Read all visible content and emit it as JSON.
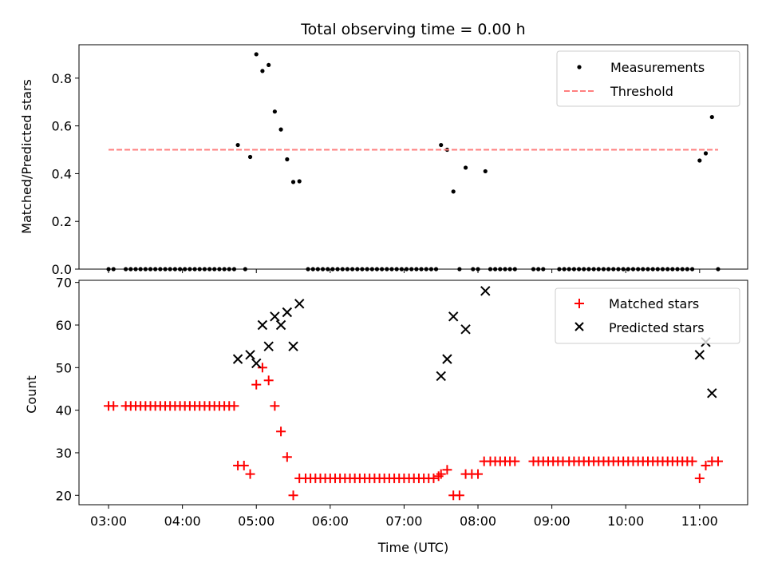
{
  "chart_data": [
    {
      "type": "scatter",
      "title": "Total observing time = 0.00 h",
      "ylabel": "Matched/Predicted stars",
      "xlabel": "",
      "x_unit": "hours (UTC)",
      "xlim": [
        2.6,
        11.65
      ],
      "ylim": [
        0,
        0.94
      ],
      "yticks": [
        0.0,
        0.2,
        0.4,
        0.6,
        0.8
      ],
      "ytick_labels": [
        "0.0",
        "0.2",
        "0.4",
        "0.6",
        "0.8"
      ],
      "xticks": [
        3,
        4,
        5,
        6,
        7,
        8,
        9,
        10,
        11
      ],
      "legend_position": "upper right",
      "series": [
        {
          "name": "Measurements",
          "kind": "scatter",
          "color": "#000000",
          "marker": "dot",
          "points": [
            [
              3.0,
              0
            ],
            [
              3.067,
              0
            ],
            [
              3.233,
              0
            ],
            [
              3.3,
              0
            ],
            [
              3.367,
              0
            ],
            [
              3.433,
              0
            ],
            [
              3.5,
              0
            ],
            [
              3.567,
              0
            ],
            [
              3.633,
              0
            ],
            [
              3.7,
              0
            ],
            [
              3.767,
              0
            ],
            [
              3.833,
              0
            ],
            [
              3.9,
              0
            ],
            [
              3.967,
              0
            ],
            [
              4.033,
              0
            ],
            [
              4.1,
              0
            ],
            [
              4.167,
              0
            ],
            [
              4.233,
              0
            ],
            [
              4.3,
              0
            ],
            [
              4.367,
              0
            ],
            [
              4.433,
              0
            ],
            [
              4.5,
              0
            ],
            [
              4.567,
              0
            ],
            [
              4.633,
              0
            ],
            [
              4.7,
              0
            ],
            [
              4.75,
              0.52
            ],
            [
              4.85,
              0
            ],
            [
              4.917,
              0.47
            ],
            [
              5.0,
              0.9
            ],
            [
              5.083,
              0.83
            ],
            [
              5.167,
              0.855
            ],
            [
              5.25,
              0.66
            ],
            [
              5.333,
              0.585
            ],
            [
              5.417,
              0.46
            ],
            [
              5.5,
              0.365
            ],
            [
              5.583,
              0.368
            ],
            [
              5.7,
              0
            ],
            [
              5.767,
              0
            ],
            [
              5.833,
              0
            ],
            [
              5.9,
              0
            ],
            [
              5.967,
              0
            ],
            [
              6.033,
              0
            ],
            [
              6.1,
              0
            ],
            [
              6.167,
              0
            ],
            [
              6.233,
              0
            ],
            [
              6.3,
              0
            ],
            [
              6.367,
              0
            ],
            [
              6.433,
              0
            ],
            [
              6.5,
              0
            ],
            [
              6.567,
              0
            ],
            [
              6.633,
              0
            ],
            [
              6.7,
              0
            ],
            [
              6.767,
              0
            ],
            [
              6.833,
              0
            ],
            [
              6.9,
              0
            ],
            [
              6.967,
              0
            ],
            [
              7.033,
              0
            ],
            [
              7.1,
              0
            ],
            [
              7.167,
              0
            ],
            [
              7.233,
              0
            ],
            [
              7.3,
              0
            ],
            [
              7.367,
              0
            ],
            [
              7.433,
              0
            ],
            [
              7.5,
              0.52
            ],
            [
              7.583,
              0.5
            ],
            [
              7.667,
              0.325
            ],
            [
              7.75,
              0
            ],
            [
              7.833,
              0.425
            ],
            [
              7.933,
              0
            ],
            [
              8.0,
              0
            ],
            [
              8.1,
              0.41
            ],
            [
              8.167,
              0
            ],
            [
              8.233,
              0
            ],
            [
              8.3,
              0
            ],
            [
              8.367,
              0
            ],
            [
              8.433,
              0
            ],
            [
              8.5,
              0
            ],
            [
              8.75,
              0
            ],
            [
              8.817,
              0
            ],
            [
              8.883,
              0
            ],
            [
              9.1,
              0
            ],
            [
              9.167,
              0
            ],
            [
              9.233,
              0
            ],
            [
              9.3,
              0
            ],
            [
              9.367,
              0
            ],
            [
              9.433,
              0
            ],
            [
              9.5,
              0
            ],
            [
              9.567,
              0
            ],
            [
              9.633,
              0
            ],
            [
              9.7,
              0
            ],
            [
              9.767,
              0
            ],
            [
              9.833,
              0
            ],
            [
              9.9,
              0
            ],
            [
              9.967,
              0
            ],
            [
              10.033,
              0
            ],
            [
              10.1,
              0
            ],
            [
              10.167,
              0
            ],
            [
              10.233,
              0
            ],
            [
              10.3,
              0
            ],
            [
              10.367,
              0
            ],
            [
              10.433,
              0
            ],
            [
              10.5,
              0
            ],
            [
              10.567,
              0
            ],
            [
              10.633,
              0
            ],
            [
              10.7,
              0
            ],
            [
              10.767,
              0
            ],
            [
              10.833,
              0
            ],
            [
              10.9,
              0
            ],
            [
              11.0,
              0.455
            ],
            [
              11.083,
              0.485
            ],
            [
              11.167,
              0.637
            ],
            [
              11.25,
              0
            ]
          ]
        },
        {
          "name": "Threshold",
          "kind": "line",
          "style": "dashed",
          "color": "#ff7f7f",
          "points": [
            [
              3.0,
              0.5
            ],
            [
              11.25,
              0.5
            ]
          ]
        }
      ]
    },
    {
      "type": "scatter",
      "title": "",
      "ylabel": "Count",
      "xlabel": "Time (UTC)",
      "x_unit": "hours (UTC)",
      "xlim": [
        2.6,
        11.65
      ],
      "ylim": [
        17.8,
        70.5
      ],
      "yticks": [
        20,
        30,
        40,
        50,
        60,
        70
      ],
      "xticks": [
        3,
        4,
        5,
        6,
        7,
        8,
        9,
        10,
        11
      ],
      "xtick_labels": [
        "03:00",
        "04:00",
        "05:00",
        "06:00",
        "07:00",
        "08:00",
        "09:00",
        "10:00",
        "11:00"
      ],
      "legend_position": "upper right",
      "series": [
        {
          "name": "Matched stars",
          "kind": "scatter",
          "color": "#ff0000",
          "marker": "plus",
          "points": [
            [
              3.0,
              41
            ],
            [
              3.067,
              41
            ],
            [
              3.233,
              41
            ],
            [
              3.3,
              41
            ],
            [
              3.367,
              41
            ],
            [
              3.433,
              41
            ],
            [
              3.5,
              41
            ],
            [
              3.567,
              41
            ],
            [
              3.633,
              41
            ],
            [
              3.7,
              41
            ],
            [
              3.767,
              41
            ],
            [
              3.833,
              41
            ],
            [
              3.9,
              41
            ],
            [
              3.967,
              41
            ],
            [
              4.033,
              41
            ],
            [
              4.1,
              41
            ],
            [
              4.167,
              41
            ],
            [
              4.233,
              41
            ],
            [
              4.3,
              41
            ],
            [
              4.367,
              41
            ],
            [
              4.433,
              41
            ],
            [
              4.5,
              41
            ],
            [
              4.567,
              41
            ],
            [
              4.633,
              41
            ],
            [
              4.7,
              41
            ],
            [
              4.75,
              27
            ],
            [
              4.833,
              27
            ],
            [
              4.917,
              25
            ],
            [
              5.0,
              46
            ],
            [
              5.083,
              50
            ],
            [
              5.167,
              47
            ],
            [
              5.25,
              41
            ],
            [
              5.333,
              35
            ],
            [
              5.417,
              29
            ],
            [
              5.5,
              20
            ],
            [
              5.583,
              24
            ],
            [
              5.667,
              24
            ],
            [
              5.733,
              24
            ],
            [
              5.8,
              24
            ],
            [
              5.867,
              24
            ],
            [
              5.933,
              24
            ],
            [
              6.0,
              24
            ],
            [
              6.067,
              24
            ],
            [
              6.133,
              24
            ],
            [
              6.2,
              24
            ],
            [
              6.267,
              24
            ],
            [
              6.333,
              24
            ],
            [
              6.4,
              24
            ],
            [
              6.467,
              24
            ],
            [
              6.533,
              24
            ],
            [
              6.6,
              24
            ],
            [
              6.667,
              24
            ],
            [
              6.733,
              24
            ],
            [
              6.8,
              24
            ],
            [
              6.867,
              24
            ],
            [
              6.933,
              24
            ],
            [
              7.0,
              24
            ],
            [
              7.067,
              24
            ],
            [
              7.133,
              24
            ],
            [
              7.2,
              24
            ],
            [
              7.267,
              24
            ],
            [
              7.333,
              24
            ],
            [
              7.4,
              24
            ],
            [
              7.467,
              24.5
            ],
            [
              7.5,
              25
            ],
            [
              7.583,
              26
            ],
            [
              7.667,
              20
            ],
            [
              7.75,
              20
            ],
            [
              7.833,
              25
            ],
            [
              7.917,
              25
            ],
            [
              8.0,
              25
            ],
            [
              8.083,
              28
            ],
            [
              8.167,
              28
            ],
            [
              8.233,
              28
            ],
            [
              8.3,
              28
            ],
            [
              8.367,
              28
            ],
            [
              8.433,
              28
            ],
            [
              8.5,
              28
            ],
            [
              8.75,
              28
            ],
            [
              8.817,
              28
            ],
            [
              8.883,
              28
            ],
            [
              8.95,
              28
            ],
            [
              9.017,
              28
            ],
            [
              9.083,
              28
            ],
            [
              9.15,
              28
            ],
            [
              9.233,
              28
            ],
            [
              9.3,
              28
            ],
            [
              9.367,
              28
            ],
            [
              9.433,
              28
            ],
            [
              9.5,
              28
            ],
            [
              9.567,
              28
            ],
            [
              9.633,
              28
            ],
            [
              9.7,
              28
            ],
            [
              9.767,
              28
            ],
            [
              9.833,
              28
            ],
            [
              9.9,
              28
            ],
            [
              9.967,
              28
            ],
            [
              10.033,
              28
            ],
            [
              10.1,
              28
            ],
            [
              10.167,
              28
            ],
            [
              10.233,
              28
            ],
            [
              10.3,
              28
            ],
            [
              10.367,
              28
            ],
            [
              10.433,
              28
            ],
            [
              10.5,
              28
            ],
            [
              10.567,
              28
            ],
            [
              10.633,
              28
            ],
            [
              10.7,
              28
            ],
            [
              10.767,
              28
            ],
            [
              10.833,
              28
            ],
            [
              10.9,
              28
            ],
            [
              11.0,
              24
            ],
            [
              11.083,
              27
            ],
            [
              11.167,
              28
            ],
            [
              11.25,
              28
            ]
          ]
        },
        {
          "name": "Predicted stars",
          "kind": "scatter",
          "color": "#000000",
          "marker": "x",
          "points": [
            [
              4.75,
              52
            ],
            [
              4.917,
              53
            ],
            [
              5.0,
              51
            ],
            [
              5.083,
              60
            ],
            [
              5.167,
              55
            ],
            [
              5.25,
              62
            ],
            [
              5.333,
              60
            ],
            [
              5.417,
              63
            ],
            [
              5.5,
              55
            ],
            [
              5.583,
              65
            ],
            [
              7.5,
              48
            ],
            [
              7.583,
              52
            ],
            [
              7.667,
              62
            ],
            [
              7.833,
              59
            ],
            [
              8.1,
              68
            ],
            [
              11.0,
              53
            ],
            [
              11.083,
              56
            ],
            [
              11.167,
              44
            ]
          ]
        }
      ]
    }
  ]
}
